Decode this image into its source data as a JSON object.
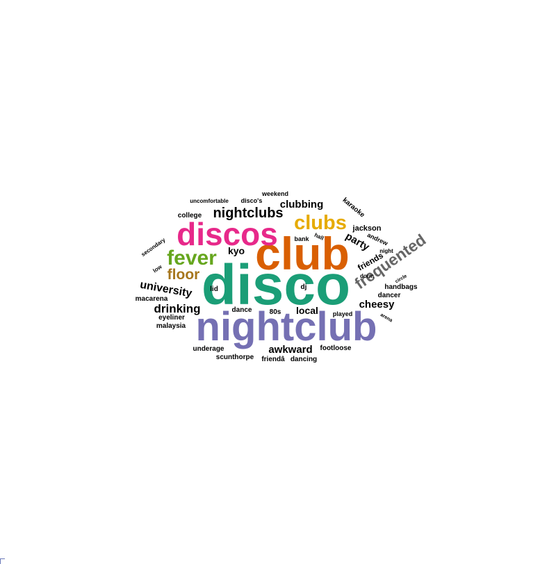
{
  "colors": {
    "black": "#000000",
    "grey": "#666666",
    "teal": "#1b9e77",
    "orange": "#d95f02",
    "purple": "#7570b3",
    "pink": "#e7298a",
    "green": "#66a61e",
    "gold": "#e6ab02",
    "brown": "#a6761d"
  },
  "words": [
    {
      "text": "disco"
    },
    {
      "text": "nightclub"
    },
    {
      "text": "club"
    },
    {
      "text": "discos"
    },
    {
      "text": "clubs"
    },
    {
      "text": "fever"
    },
    {
      "text": "frequented"
    },
    {
      "text": "floor"
    },
    {
      "text": "nightclubs"
    },
    {
      "text": "university"
    },
    {
      "text": "drinking"
    },
    {
      "text": "awkward"
    },
    {
      "text": "clubbing"
    },
    {
      "text": "party"
    },
    {
      "text": "cheesy"
    },
    {
      "text": "local"
    },
    {
      "text": "kyo"
    },
    {
      "text": "friends"
    },
    {
      "text": "jackson"
    },
    {
      "text": "karaoke"
    },
    {
      "text": "andrew"
    },
    {
      "text": "dancer"
    },
    {
      "text": "handbags"
    },
    {
      "text": "macarena"
    },
    {
      "text": "eyeliner"
    },
    {
      "text": "malaysia"
    },
    {
      "text": "dance"
    },
    {
      "text": "80s"
    },
    {
      "text": "played"
    },
    {
      "text": "underage"
    },
    {
      "text": "footloose"
    },
    {
      "text": "scunthorpe"
    },
    {
      "text": "friendâ"
    },
    {
      "text": "dancing"
    },
    {
      "text": "college"
    },
    {
      "text": "uncomfortable"
    },
    {
      "text": "disco's"
    },
    {
      "text": "weekend"
    },
    {
      "text": "secondary"
    },
    {
      "text": "low"
    },
    {
      "text": "bank"
    },
    {
      "text": "hall"
    },
    {
      "text": "night"
    },
    {
      "text": "dorm"
    },
    {
      "text": "circle"
    },
    {
      "text": "arena"
    },
    {
      "text": "lid"
    },
    {
      "text": "dj"
    }
  ]
}
